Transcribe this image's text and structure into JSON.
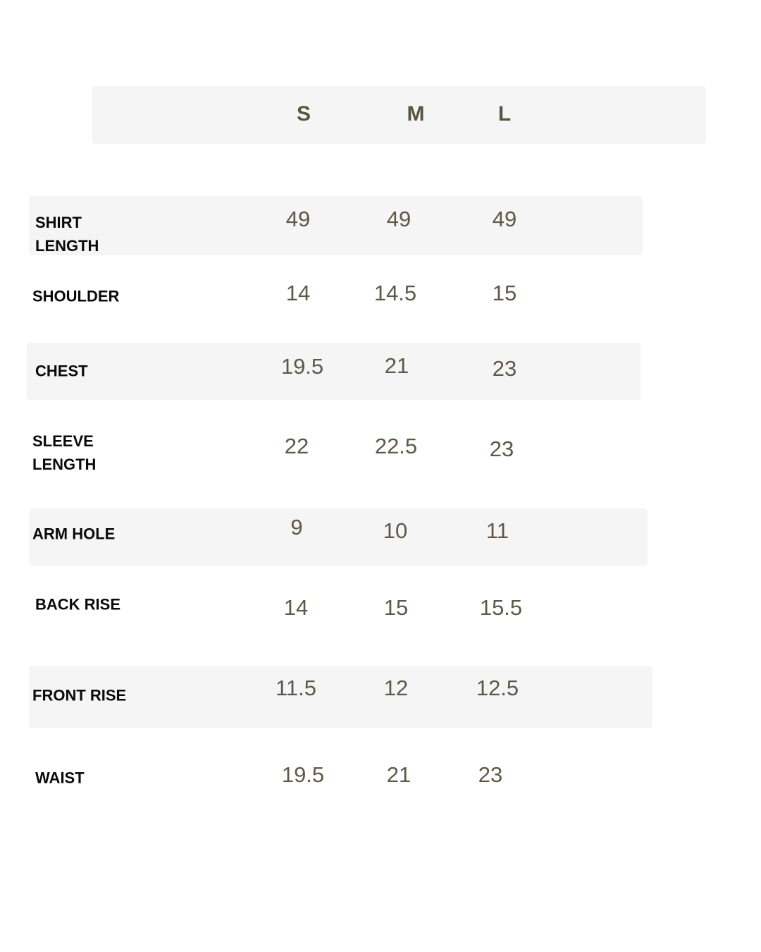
{
  "header": {
    "sizes": [
      "S",
      "M",
      "L"
    ]
  },
  "rows": [
    {
      "label": "SHIRT LENGTH",
      "values": [
        "49",
        "49",
        "49"
      ]
    },
    {
      "label": "SHOULDER",
      "values": [
        "14",
        "14.5",
        "15"
      ]
    },
    {
      "label": "CHEST",
      "values": [
        "19.5",
        "21",
        "23"
      ]
    },
    {
      "label": "SLEEVE LENGTH",
      "values": [
        "22",
        "22.5",
        "23"
      ]
    },
    {
      "label": "ARM HOLE",
      "values": [
        "9",
        "10",
        "11"
      ]
    },
    {
      "label": "BACK RISE",
      "values": [
        "14",
        "15",
        "15.5"
      ]
    },
    {
      "label": "FRONT RISE",
      "values": [
        "11.5",
        "12",
        "12.5"
      ]
    },
    {
      "label": "WAIST",
      "values": [
        "19.5",
        "21",
        "23"
      ]
    }
  ],
  "colors": {
    "band": "#f5f5f5",
    "value_text": "#5e5848",
    "label_text": "#0a0a0a"
  }
}
